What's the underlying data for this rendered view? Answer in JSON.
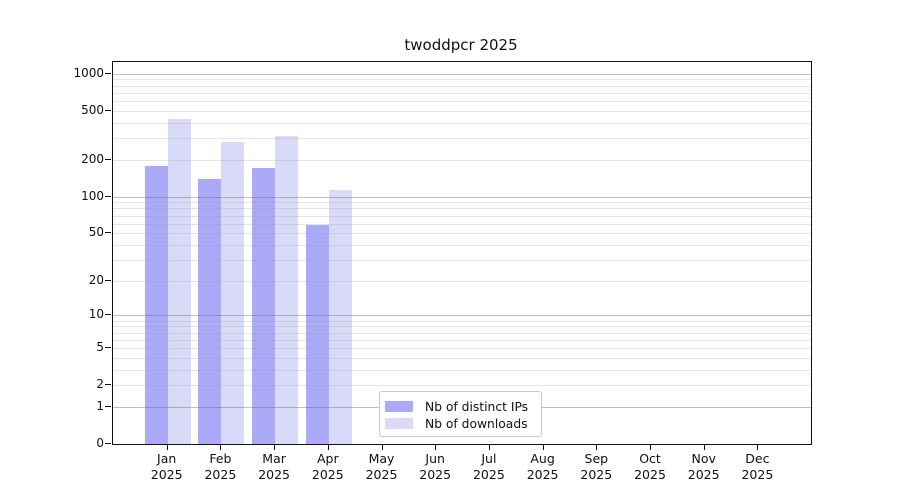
{
  "chart_data": {
    "type": "bar",
    "title": "twoddpcr 2025",
    "categories": [
      "Jan",
      "Feb",
      "Mar",
      "Apr",
      "May",
      "Jun",
      "Jul",
      "Aug",
      "Sep",
      "Oct",
      "Nov",
      "Dec"
    ],
    "year_label": "2025",
    "series": [
      {
        "name": "Nb of distinct IPs",
        "color": "#aaaaf8",
        "values": [
          177,
          140,
          173,
          58,
          null,
          null,
          null,
          null,
          null,
          null,
          null,
          null
        ]
      },
      {
        "name": "Nb of downloads",
        "color": "#d9d9f8",
        "values": [
          430,
          280,
          314,
          114,
          null,
          null,
          null,
          null,
          null,
          null,
          null,
          null
        ]
      }
    ],
    "yticks": [
      0,
      1,
      2,
      5,
      10,
      20,
      50,
      100,
      200,
      500,
      1000
    ],
    "ylim": [
      0,
      1245
    ],
    "scale": "log10(x+1)",
    "grid": {
      "decades": [
        1,
        10,
        100,
        1000
      ],
      "minor_multipliers": [
        2,
        3,
        4,
        5,
        6,
        7,
        8,
        9
      ],
      "decade_color": "#c6c6c6",
      "minor_color": "#ededed",
      "legend_position": "bottom-center"
    }
  }
}
